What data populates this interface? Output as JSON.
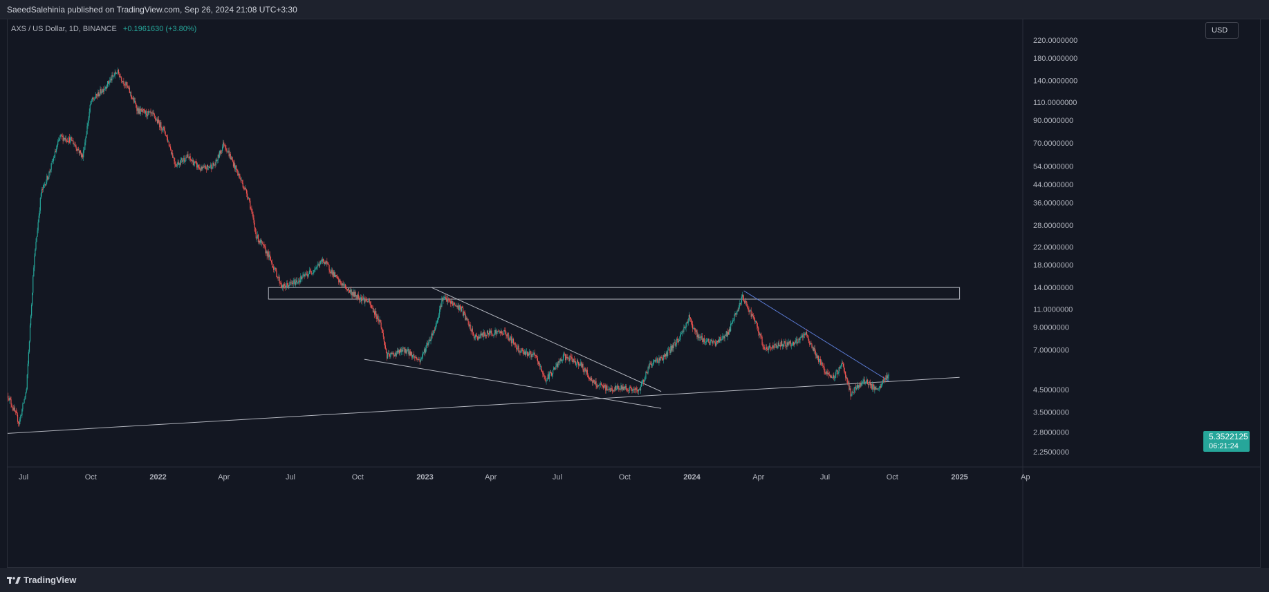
{
  "header": {
    "published": "SaeedSalehinia published on TradingView.com, Sep 26, 2024 21:08 UTC+3:30"
  },
  "legend": {
    "symbol": "AXS / US Dollar, 1D, BINANCE",
    "change": "+0.1961630 (+3.80%)"
  },
  "currency_button": "USD",
  "price_tag": {
    "price": "5.3522125",
    "countdown": "06:21:24"
  },
  "footer": {
    "logo_text": "TradingView"
  },
  "colors": {
    "background": "#131722",
    "up": "#26a69a",
    "down": "#ef5350",
    "trendline_blue": "#5b7bd5",
    "line": "#b2b5be"
  },
  "chart_data": {
    "type": "candlestick",
    "timeframe": "1D",
    "y_scale": "log",
    "y_ticks": [
      "220.0000000",
      "180.0000000",
      "140.0000000",
      "110.0000000",
      "90.0000000",
      "70.0000000",
      "54.0000000",
      "44.0000000",
      "36.0000000",
      "28.0000000",
      "22.0000000",
      "18.0000000",
      "14.0000000",
      "11.0000000",
      "9.0000000",
      "7.0000000",
      "4.5000000",
      "3.5000000",
      "2.8000000",
      "2.2500000"
    ],
    "x_ticks": [
      {
        "label": "Jul",
        "date": "2021-07-01",
        "bold": false
      },
      {
        "label": "Oct",
        "date": "2021-10-01",
        "bold": false
      },
      {
        "label": "2022",
        "date": "2022-01-01",
        "bold": true
      },
      {
        "label": "Apr",
        "date": "2022-04-01",
        "bold": false
      },
      {
        "label": "Jul",
        "date": "2022-07-01",
        "bold": false
      },
      {
        "label": "Oct",
        "date": "2022-10-01",
        "bold": false
      },
      {
        "label": "2023",
        "date": "2023-01-01",
        "bold": true
      },
      {
        "label": "Apr",
        "date": "2023-04-01",
        "bold": false
      },
      {
        "label": "Jul",
        "date": "2023-07-01",
        "bold": false
      },
      {
        "label": "Oct",
        "date": "2023-10-01",
        "bold": false
      },
      {
        "label": "2024",
        "date": "2024-01-01",
        "bold": true
      },
      {
        "label": "Apr",
        "date": "2024-04-01",
        "bold": false
      },
      {
        "label": "Jul",
        "date": "2024-07-01",
        "bold": false
      },
      {
        "label": "Oct",
        "date": "2024-10-01",
        "bold": false
      },
      {
        "label": "2025",
        "date": "2025-01-01",
        "bold": true
      },
      {
        "label": "Ap",
        "date": "2025-04-01",
        "bold": false
      }
    ],
    "price_path": [
      {
        "date": "2021-06-10",
        "price": 4.2
      },
      {
        "date": "2021-06-25",
        "price": 3.1
      },
      {
        "date": "2021-07-05",
        "price": 4.5
      },
      {
        "date": "2021-07-15",
        "price": 18
      },
      {
        "date": "2021-07-25",
        "price": 40
      },
      {
        "date": "2021-08-05",
        "price": 50
      },
      {
        "date": "2021-08-20",
        "price": 75
      },
      {
        "date": "2021-09-05",
        "price": 72
      },
      {
        "date": "2021-09-20",
        "price": 60
      },
      {
        "date": "2021-10-01",
        "price": 110
      },
      {
        "date": "2021-10-20",
        "price": 130
      },
      {
        "date": "2021-11-06",
        "price": 155
      },
      {
        "date": "2021-11-20",
        "price": 130
      },
      {
        "date": "2021-12-05",
        "price": 100
      },
      {
        "date": "2021-12-25",
        "price": 95
      },
      {
        "date": "2022-01-10",
        "price": 80
      },
      {
        "date": "2022-01-25",
        "price": 55
      },
      {
        "date": "2022-02-10",
        "price": 60
      },
      {
        "date": "2022-03-01",
        "price": 52
      },
      {
        "date": "2022-03-20",
        "price": 55
      },
      {
        "date": "2022-04-01",
        "price": 70
      },
      {
        "date": "2022-04-20",
        "price": 50
      },
      {
        "date": "2022-05-05",
        "price": 38
      },
      {
        "date": "2022-05-15",
        "price": 25
      },
      {
        "date": "2022-06-01",
        "price": 20
      },
      {
        "date": "2022-06-20",
        "price": 14
      },
      {
        "date": "2022-07-10",
        "price": 15
      },
      {
        "date": "2022-08-01",
        "price": 17
      },
      {
        "date": "2022-08-15",
        "price": 19
      },
      {
        "date": "2022-09-05",
        "price": 15
      },
      {
        "date": "2022-09-25",
        "price": 13
      },
      {
        "date": "2022-10-15",
        "price": 12
      },
      {
        "date": "2022-11-01",
        "price": 9.5
      },
      {
        "date": "2022-11-10",
        "price": 6.5
      },
      {
        "date": "2022-12-05",
        "price": 7
      },
      {
        "date": "2022-12-25",
        "price": 6.2
      },
      {
        "date": "2023-01-15",
        "price": 9
      },
      {
        "date": "2023-01-25",
        "price": 12.5
      },
      {
        "date": "2023-02-20",
        "price": 11
      },
      {
        "date": "2023-03-10",
        "price": 8
      },
      {
        "date": "2023-04-01",
        "price": 8.5
      },
      {
        "date": "2023-04-20",
        "price": 8.5
      },
      {
        "date": "2023-05-10",
        "price": 7
      },
      {
        "date": "2023-06-01",
        "price": 6.5
      },
      {
        "date": "2023-06-15",
        "price": 5
      },
      {
        "date": "2023-07-10",
        "price": 6.5
      },
      {
        "date": "2023-08-01",
        "price": 6
      },
      {
        "date": "2023-08-20",
        "price": 4.8
      },
      {
        "date": "2023-09-10",
        "price": 4.5
      },
      {
        "date": "2023-10-01",
        "price": 4.6
      },
      {
        "date": "2023-10-20",
        "price": 4.4
      },
      {
        "date": "2023-11-05",
        "price": 6
      },
      {
        "date": "2023-11-25",
        "price": 6.5
      },
      {
        "date": "2023-12-15",
        "price": 8
      },
      {
        "date": "2023-12-28",
        "price": 10
      },
      {
        "date": "2024-01-10",
        "price": 8
      },
      {
        "date": "2024-02-01",
        "price": 7.5
      },
      {
        "date": "2024-02-20",
        "price": 8.5
      },
      {
        "date": "2024-03-10",
        "price": 12.5
      },
      {
        "date": "2024-03-25",
        "price": 10
      },
      {
        "date": "2024-04-10",
        "price": 7
      },
      {
        "date": "2024-05-01",
        "price": 7.5
      },
      {
        "date": "2024-05-20",
        "price": 7.5
      },
      {
        "date": "2024-06-05",
        "price": 8.3
      },
      {
        "date": "2024-06-25",
        "price": 6
      },
      {
        "date": "2024-07-10",
        "price": 5
      },
      {
        "date": "2024-07-25",
        "price": 6
      },
      {
        "date": "2024-08-05",
        "price": 4.3
      },
      {
        "date": "2024-08-25",
        "price": 5
      },
      {
        "date": "2024-09-10",
        "price": 4.4
      },
      {
        "date": "2024-09-26",
        "price": 5.35
      }
    ],
    "drawings": [
      {
        "kind": "rectangle",
        "from": {
          "date": "2022-06-01",
          "price": 14
        },
        "to": {
          "date": "2025-01-01",
          "price": 12.3
        },
        "color": "#b2b5be"
      },
      {
        "kind": "line",
        "from": {
          "date": "2021-06-01",
          "price": 2.75
        },
        "to": {
          "date": "2025-01-01",
          "price": 5.15
        },
        "color": "#b2b5be"
      },
      {
        "kind": "line",
        "from": {
          "date": "2023-01-10",
          "price": 14
        },
        "to": {
          "date": "2023-11-20",
          "price": 4.4
        },
        "color": "#b2b5be"
      },
      {
        "kind": "line",
        "from": {
          "date": "2022-10-10",
          "price": 6.3
        },
        "to": {
          "date": "2023-11-20",
          "price": 3.65
        },
        "color": "#b2b5be"
      },
      {
        "kind": "line",
        "from": {
          "date": "2024-03-12",
          "price": 13.5
        },
        "to": {
          "date": "2024-09-26",
          "price": 4.95
        },
        "color": "#5b7bd5"
      }
    ],
    "grid": false,
    "last_price": 5.3522125
  }
}
